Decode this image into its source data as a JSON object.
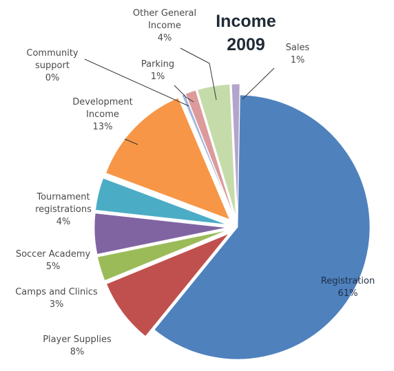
{
  "chart_data": {
    "type": "pie",
    "title": [
      "Income",
      "2009"
    ],
    "exploded": true,
    "legend": "none",
    "slices": [
      {
        "label": [
          "Registration"
        ],
        "pct_text": "61%",
        "value": 61,
        "color": "#4f81bd"
      },
      {
        "label": [
          "Player Supplies"
        ],
        "pct_text": "8%",
        "value": 8,
        "color": "#c0504d"
      },
      {
        "label": [
          "Camps and Clinics"
        ],
        "pct_text": "3%",
        "value": 3,
        "color": "#9bbb59"
      },
      {
        "label": [
          "Soccer Academy"
        ],
        "pct_text": "5%",
        "value": 5,
        "color": "#8064a2"
      },
      {
        "label": [
          "Tournament",
          "registrations"
        ],
        "pct_text": "4%",
        "value": 4,
        "color": "#4bacc6"
      },
      {
        "label": [
          "Development",
          "Income"
        ],
        "pct_text": "13%",
        "value": 13,
        "color": "#f79646"
      },
      {
        "label": [
          "Community",
          "support"
        ],
        "pct_text": "0%",
        "value": 0.4,
        "color": "#a3b7dd"
      },
      {
        "label": [
          "Parking"
        ],
        "pct_text": "1%",
        "value": 1.3,
        "color": "#dc9a9b"
      },
      {
        "label": [
          "Other General",
          "Income"
        ],
        "pct_text": "4%",
        "value": 4,
        "color": "#c5dcaa"
      },
      {
        "label": [
          "Sales"
        ],
        "pct_text": "1%",
        "value": 1,
        "color": "#b3a4cc"
      }
    ]
  }
}
